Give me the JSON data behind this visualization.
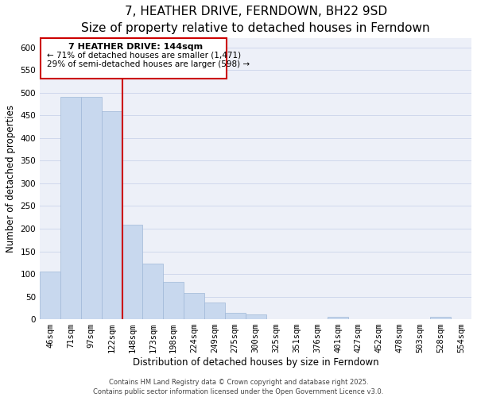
{
  "title": "7, HEATHER DRIVE, FERNDOWN, BH22 9SD",
  "subtitle": "Size of property relative to detached houses in Ferndown",
  "xlabel": "Distribution of detached houses by size in Ferndown",
  "ylabel": "Number of detached properties",
  "bar_labels": [
    "46sqm",
    "71sqm",
    "97sqm",
    "122sqm",
    "148sqm",
    "173sqm",
    "198sqm",
    "224sqm",
    "249sqm",
    "275sqm",
    "300sqm",
    "325sqm",
    "351sqm",
    "376sqm",
    "401sqm",
    "427sqm",
    "452sqm",
    "478sqm",
    "503sqm",
    "528sqm",
    "554sqm"
  ],
  "bar_values": [
    105,
    490,
    490,
    460,
    208,
    123,
    83,
    58,
    37,
    15,
    10,
    0,
    0,
    0,
    5,
    0,
    0,
    0,
    0,
    5,
    0
  ],
  "bar_color": "#c8d8ee",
  "bar_edge_color": "#a0b8d8",
  "vline_color": "#cc0000",
  "ylim": [
    0,
    620
  ],
  "yticks": [
    0,
    50,
    100,
    150,
    200,
    250,
    300,
    350,
    400,
    450,
    500,
    550,
    600
  ],
  "annotation_title": "7 HEATHER DRIVE: 144sqm",
  "annotation_line1": "← 71% of detached houses are smaller (1,471)",
  "annotation_line2": "29% of semi-detached houses are larger (598) →",
  "footnote1": "Contains HM Land Registry data © Crown copyright and database right 2025.",
  "footnote2": "Contains public sector information licensed under the Open Government Licence v3.0.",
  "grid_color": "#d0d8ec",
  "title_fontsize": 11,
  "subtitle_fontsize": 9.5,
  "axis_label_fontsize": 8.5,
  "tick_fontsize": 7.5,
  "annotation_box_color": "#ffffff",
  "annotation_box_edge": "#cc0000",
  "footnote_fontsize": 6.0
}
